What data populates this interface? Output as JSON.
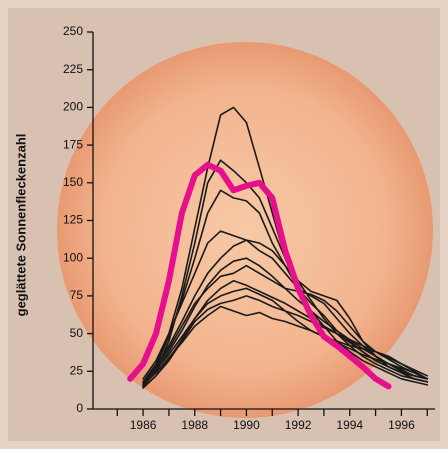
{
  "chart_data": {
    "type": "line",
    "y_label": "geglättete Sonnenfleckenzahl",
    "x": [
      1985.5,
      1986,
      1986.5,
      1987,
      1987.5,
      1988,
      1988.5,
      1989,
      1989.5,
      1990,
      1990.5,
      1991,
      1991.5,
      1992,
      1992.5,
      1993,
      1993.5,
      1994,
      1994.5,
      1995,
      1995.5,
      1996,
      1996.5,
      1997
    ],
    "xlim": [
      1984.06,
      1997.3
    ],
    "xticks": [
      1986,
      1988,
      1990,
      1992,
      1994,
      1996
    ],
    "xticks_minor": [
      1985,
      1987,
      1989,
      1991,
      1993,
      1995,
      1997
    ],
    "ylim": [
      0,
      250
    ],
    "yticks": [
      0,
      25,
      50,
      75,
      100,
      125,
      150,
      175,
      200,
      225,
      250
    ],
    "series": [
      {
        "color": "#1a1a1a",
        "values": [
          null,
          18,
          30,
          50,
          80,
          120,
          160,
          195,
          200,
          190,
          160,
          130,
          100,
          80,
          65,
          55,
          45,
          38,
          32,
          28,
          24,
          20,
          18,
          16
        ]
      },
      {
        "color": "#1a1a1a",
        "values": [
          null,
          15,
          25,
          45,
          75,
          110,
          150,
          165,
          158,
          150,
          140,
          120,
          100,
          85,
          72,
          60,
          50,
          42,
          35,
          30,
          26,
          22,
          20,
          18
        ]
      },
      {
        "color": "#1a1a1a",
        "values": [
          null,
          16,
          28,
          48,
          72,
          100,
          130,
          145,
          140,
          138,
          130,
          110,
          95,
          80,
          70,
          62,
          52,
          45,
          38,
          32,
          28,
          24,
          20,
          18
        ]
      },
      {
        "color": "#1a1a1a",
        "values": [
          null,
          20,
          32,
          50,
          70,
          90,
          110,
          118,
          115,
          112,
          105,
          100,
          90,
          80,
          75,
          70,
          60,
          50,
          42,
          35,
          30,
          25,
          22,
          20
        ]
      },
      {
        "color": "#1a1a1a",
        "values": [
          null,
          18,
          28,
          42,
          58,
          75,
          90,
          100,
          108,
          112,
          110,
          105,
          95,
          85,
          78,
          75,
          72,
          60,
          45,
          35,
          28,
          24,
          20,
          18
        ]
      },
      {
        "color": "#1a1a1a",
        "values": [
          null,
          15,
          25,
          38,
          52,
          68,
          82,
          92,
          98,
          100,
          95,
          88,
          80,
          72,
          65,
          58,
          52,
          46,
          40,
          35,
          30,
          26,
          22,
          20
        ]
      },
      {
        "color": "#1a1a1a",
        "values": [
          null,
          17,
          26,
          36,
          48,
          60,
          72,
          80,
          85,
          82,
          78,
          74,
          70,
          65,
          60,
          55,
          50,
          44,
          38,
          32,
          28,
          24,
          22,
          20
        ]
      },
      {
        "color": "#1a1a1a",
        "values": [
          null,
          14,
          22,
          32,
          45,
          58,
          66,
          70,
          72,
          75,
          72,
          68,
          65,
          62,
          58,
          54,
          50,
          46,
          42,
          38,
          34,
          30,
          26,
          22
        ]
      },
      {
        "color": "#1a1a1a",
        "values": [
          null,
          16,
          24,
          34,
          44,
          55,
          62,
          68,
          65,
          62,
          64,
          60,
          58,
          55,
          52,
          48,
          45,
          42,
          40,
          38,
          35,
          30,
          25,
          20
        ]
      },
      {
        "color": "#1a1a1a",
        "values": [
          null,
          14,
          22,
          33,
          46,
          60,
          70,
          75,
          78,
          80,
          76,
          72,
          65,
          58,
          52,
          48,
          44,
          40,
          36,
          33,
          30,
          27,
          24,
          20
        ]
      },
      {
        "color": "#1a1a1a",
        "values": [
          null,
          16,
          27,
          40,
          55,
          70,
          80,
          88,
          90,
          95,
          90,
          85,
          80,
          78,
          76,
          72,
          65,
          55,
          45,
          38,
          33,
          28,
          24,
          20
        ]
      },
      {
        "color": "#e6108c",
        "width": 6,
        "values": [
          20,
          30,
          50,
          85,
          130,
          155,
          162,
          158,
          145,
          148,
          150,
          140,
          105,
          80,
          62,
          48,
          42,
          35,
          28,
          20,
          15,
          null,
          null,
          null
        ]
      }
    ]
  }
}
